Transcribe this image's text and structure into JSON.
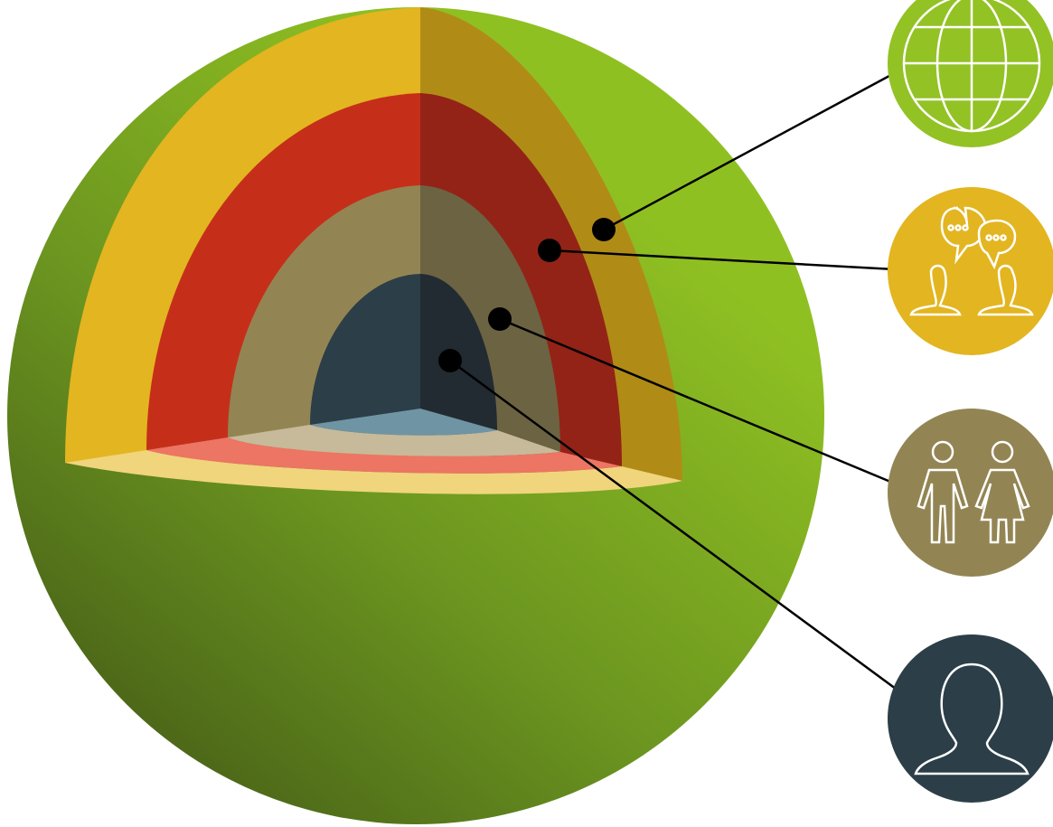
{
  "diagram": {
    "layers": [
      {
        "name": "global",
        "icon": "globe-icon",
        "color": "#93c225",
        "cut_color": "#b08c17"
      },
      {
        "name": "community",
        "icon": "conversation-icon",
        "color": "#e3b520",
        "cut_color": "#932317"
      },
      {
        "name": "relationships",
        "icon": "couple-icon",
        "color": "#938553",
        "cut_color": "#6c6342"
      },
      {
        "name": "individual",
        "icon": "person-icon",
        "color": "#2c3e47",
        "cut_color": "#222b31"
      }
    ],
    "colors": {
      "sphere_light": "#8fc022",
      "sphere_dark": "#4a6418",
      "shell_1": "#e3b520",
      "shell_2": "#c52f1a",
      "shell_3": "#938553",
      "shell_4": "#2c3e47",
      "floor_1": "#f0d57c",
      "floor_2": "#ec7564",
      "floor_3": "#c6ba9a",
      "floor_4": "#6f94a4",
      "connector": "#000000",
      "icon_stroke": "#ffffff"
    }
  }
}
